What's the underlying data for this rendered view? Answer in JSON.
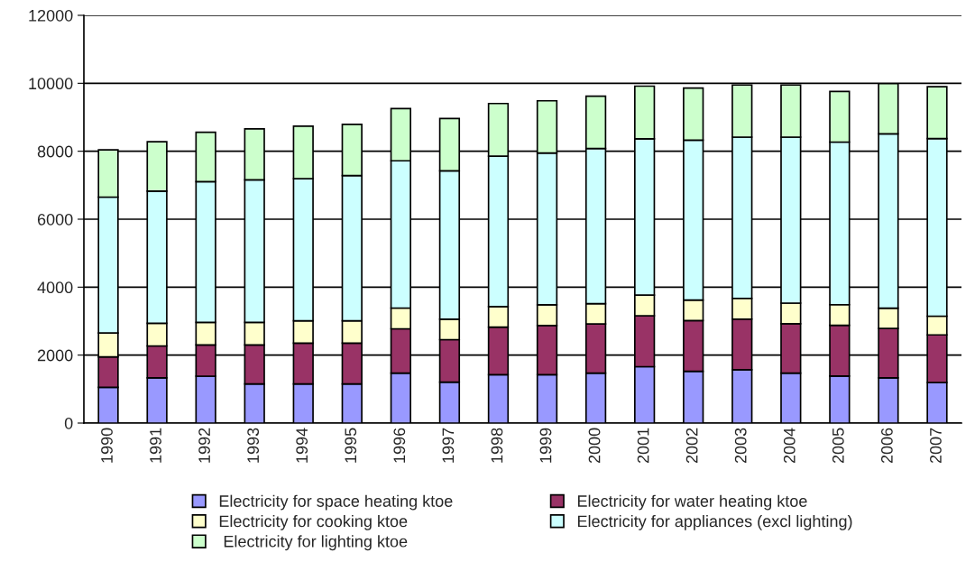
{
  "chart_data": {
    "type": "bar",
    "stacked": true,
    "categories": [
      "1990",
      "1991",
      "1992",
      "1993",
      "1994",
      "1995",
      "1996",
      "1997",
      "1998",
      "1999",
      "2000",
      "2001",
      "2002",
      "2003",
      "2004",
      "2005",
      "2006",
      "2007"
    ],
    "series": [
      {
        "name": "Electricity for space heating ktoe",
        "color": "#9999ff",
        "values": [
          1050,
          1330,
          1380,
          1150,
          1150,
          1150,
          1470,
          1205,
          1425,
          1425,
          1470,
          1660,
          1525,
          1570,
          1470,
          1385,
          1330,
          1195
        ]
      },
      {
        "name": "Electricity for water heating ktoe",
        "color": "#993366",
        "values": [
          900,
          940,
          920,
          1150,
          1205,
          1205,
          1305,
          1250,
          1400,
          1445,
          1445,
          1500,
          1490,
          1490,
          1455,
          1490,
          1455,
          1400
        ]
      },
      {
        "name": "Electricity for cooking ktoe",
        "color": "#ffffcc",
        "values": [
          700,
          665,
          665,
          665,
          655,
          655,
          610,
          600,
          605,
          610,
          600,
          605,
          605,
          610,
          605,
          610,
          595,
          550
        ]
      },
      {
        "name": "Electricity for appliances (excl lighting)",
        "color": "#ccffff",
        "values": [
          4000,
          3890,
          4140,
          4195,
          4185,
          4275,
          4335,
          4370,
          4425,
          4470,
          4565,
          4600,
          4705,
          4745,
          4885,
          4785,
          5130,
          5230
        ]
      },
      {
        "name": " Electricity for lighting ktoe",
        "color": "#ccffcc",
        "values": [
          1390,
          1455,
          1455,
          1500,
          1545,
          1505,
          1535,
          1540,
          1550,
          1535,
          1540,
          1550,
          1535,
          1535,
          1535,
          1490,
          1480,
          1525
        ]
      }
    ],
    "ylim": [
      0,
      12000
    ],
    "yticks": [
      0,
      2000,
      4000,
      6000,
      8000,
      10000,
      12000
    ],
    "grid": "y",
    "legend": "bottom"
  }
}
